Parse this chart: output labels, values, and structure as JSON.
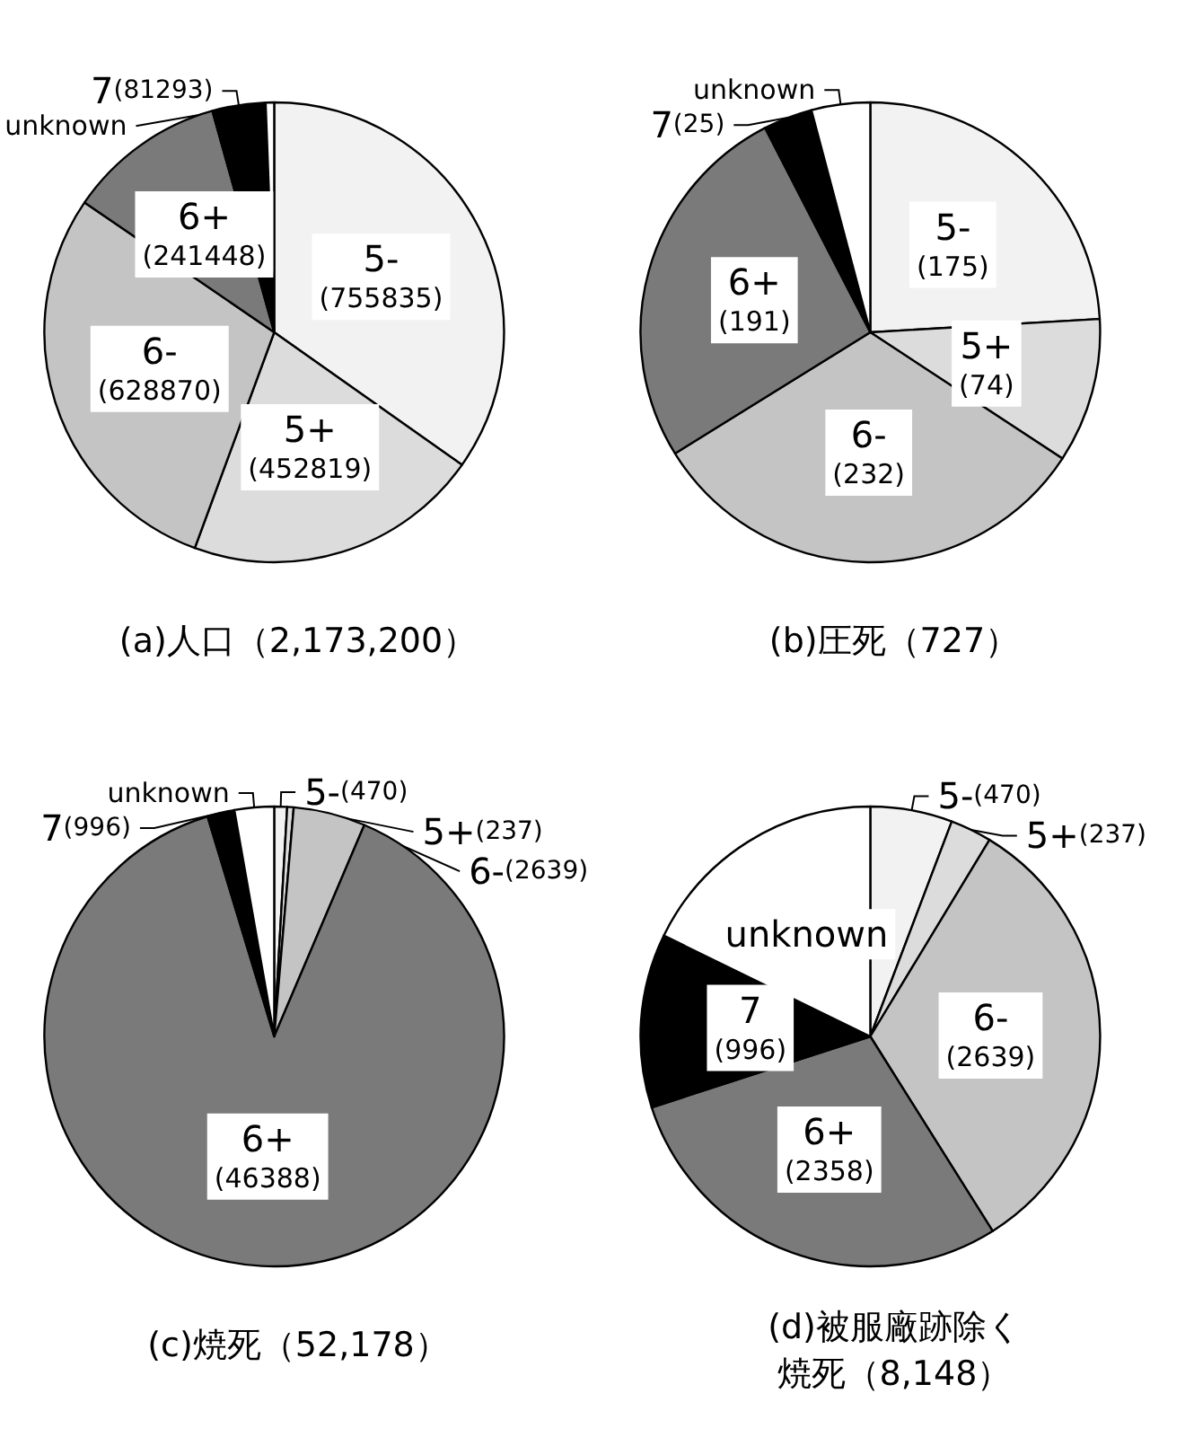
{
  "chart_data": [
    {
      "type": "pie",
      "title": "(a)人口（2,173,200）",
      "categories": [
        "5-",
        "5+",
        "6-",
        "6+",
        "7",
        "unknown"
      ],
      "values": [
        755835,
        452819,
        628870,
        241448,
        81293,
        12935
      ],
      "value_labels": [
        "(755835)",
        "(452819)",
        "(628870)",
        "(241448)",
        "(81293)",
        null
      ],
      "colors": [
        "#f2f2f2",
        "#dcdcdc",
        "#c4c4c4",
        "#7a7a7a",
        "#000000",
        "#ffffff"
      ],
      "legend": false
    },
    {
      "type": "pie",
      "title": "(b)圧死（727）",
      "categories": [
        "5-",
        "5+",
        "6-",
        "6+",
        "7",
        "unknown"
      ],
      "values": [
        175,
        74,
        232,
        191,
        25,
        30
      ],
      "value_labels": [
        "(175)",
        "(74)",
        "(232)",
        "(191)",
        "(25)",
        null
      ],
      "colors": [
        "#f2f2f2",
        "#dcdcdc",
        "#c4c4c4",
        "#7a7a7a",
        "#000000",
        "#ffffff"
      ],
      "legend": false
    },
    {
      "type": "pie",
      "title": "(c)焼死（52,178）",
      "categories": [
        "5-",
        "5+",
        "6-",
        "6+",
        "7",
        "unknown"
      ],
      "values": [
        470,
        237,
        2639,
        46388,
        996,
        1448
      ],
      "value_labels": [
        "(470)",
        "(237)",
        "(2639)",
        "(46388)",
        "(996)",
        null
      ],
      "colors": [
        "#f2f2f2",
        "#dcdcdc",
        "#c4c4c4",
        "#7a7a7a",
        "#000000",
        "#ffffff"
      ],
      "legend": false
    },
    {
      "type": "pie",
      "title": "(d)被服廠跡除く",
      "subtitle": "焼死（8,148）",
      "categories": [
        "5-",
        "5+",
        "6-",
        "6+",
        "7",
        "unknown"
      ],
      "values": [
        470,
        237,
        2639,
        2358,
        996,
        1448
      ],
      "value_labels": [
        "(470)",
        "(237)",
        "(2639)",
        "(2358)",
        "(996)",
        null
      ],
      "colors": [
        "#f2f2f2",
        "#dcdcdc",
        "#c4c4c4",
        "#7a7a7a",
        "#000000",
        "#ffffff"
      ],
      "legend": false
    }
  ]
}
